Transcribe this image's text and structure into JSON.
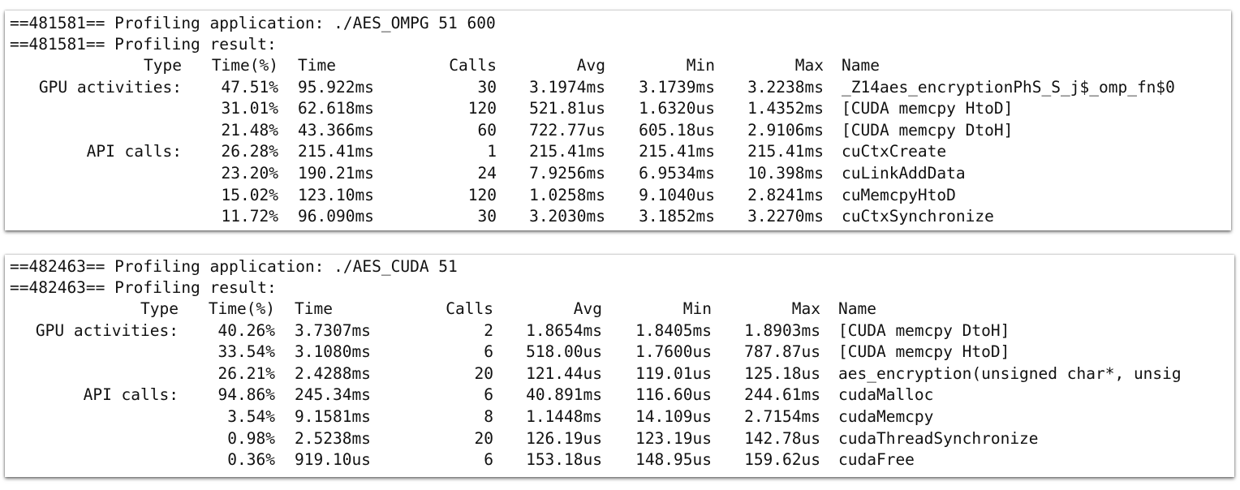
{
  "sessions": [
    {
      "header_lines": [
        "==481581== Profiling application: ./AES_OMPG 51 600",
        "==481581== Profiling result:"
      ],
      "columns": {
        "type": "Type",
        "time_pct": "Time(%)",
        "time": "Time",
        "calls": "Calls",
        "avg": "Avg",
        "min": "Min",
        "max": "Max",
        "name": "Name"
      },
      "rows": [
        {
          "type": "GPU activities:",
          "time_pct": "47.51%",
          "time": "95.922ms",
          "calls": "30",
          "avg": "3.1974ms",
          "min": "3.1739ms",
          "max": "3.2238ms",
          "name": "_Z14aes_encryptionPhS_S_j$_omp_fn$0"
        },
        {
          "type": "",
          "time_pct": "31.01%",
          "time": "62.618ms",
          "calls": "120",
          "avg": "521.81us",
          "min": "1.6320us",
          "max": "1.4352ms",
          "name": "[CUDA memcpy HtoD]"
        },
        {
          "type": "",
          "time_pct": "21.48%",
          "time": "43.366ms",
          "calls": "60",
          "avg": "722.77us",
          "min": "605.18us",
          "max": "2.9106ms",
          "name": "[CUDA memcpy DtoH]"
        },
        {
          "type": "API calls:",
          "time_pct": "26.28%",
          "time": "215.41ms",
          "calls": "1",
          "avg": "215.41ms",
          "min": "215.41ms",
          "max": "215.41ms",
          "name": "cuCtxCreate"
        },
        {
          "type": "",
          "time_pct": "23.20%",
          "time": "190.21ms",
          "calls": "24",
          "avg": "7.9256ms",
          "min": "6.9534ms",
          "max": "10.398ms",
          "name": "cuLinkAddData"
        },
        {
          "type": "",
          "time_pct": "15.02%",
          "time": "123.10ms",
          "calls": "120",
          "avg": "1.0258ms",
          "min": "9.1040us",
          "max": "2.8241ms",
          "name": "cuMemcpyHtoD"
        },
        {
          "type": "",
          "time_pct": "11.72%",
          "time": "96.090ms",
          "calls": "30",
          "avg": "3.2030ms",
          "min": "3.1852ms",
          "max": "3.2270ms",
          "name": "cuCtxSynchronize"
        }
      ]
    },
    {
      "header_lines": [
        "==482463== Profiling application: ./AES_CUDA 51",
        "==482463== Profiling result:"
      ],
      "columns": {
        "type": "Type",
        "time_pct": "Time(%)",
        "time": "Time",
        "calls": "Calls",
        "avg": "Avg",
        "min": "Min",
        "max": "Max",
        "name": "Name"
      },
      "rows": [
        {
          "type": "GPU activities:",
          "time_pct": "40.26%",
          "time": "3.7307ms",
          "calls": "2",
          "avg": "1.8654ms",
          "min": "1.8405ms",
          "max": "1.8903ms",
          "name": "[CUDA memcpy DtoH]"
        },
        {
          "type": "",
          "time_pct": "33.54%",
          "time": "3.1080ms",
          "calls": "6",
          "avg": "518.00us",
          "min": "1.7600us",
          "max": "787.87us",
          "name": "[CUDA memcpy HtoD]"
        },
        {
          "type": "",
          "time_pct": "26.21%",
          "time": "2.4288ms",
          "calls": "20",
          "avg": "121.44us",
          "min": "119.01us",
          "max": "125.18us",
          "name": "aes_encryption(unsigned char*, unsig"
        },
        {
          "type": "API calls:",
          "time_pct": "94.86%",
          "time": "245.34ms",
          "calls": "6",
          "avg": "40.891ms",
          "min": "116.60us",
          "max": "244.61ms",
          "name": "cudaMalloc"
        },
        {
          "type": "",
          "time_pct": "3.54%",
          "time": "9.1581ms",
          "calls": "8",
          "avg": "1.1448ms",
          "min": "14.109us",
          "max": "2.7154ms",
          "name": "cudaMemcpy"
        },
        {
          "type": "",
          "time_pct": "0.98%",
          "time": "2.5238ms",
          "calls": "20",
          "avg": "126.19us",
          "min": "123.19us",
          "max": "142.78us",
          "name": "cudaThreadSynchronize"
        },
        {
          "type": "",
          "time_pct": "0.36%",
          "time": "919.10us",
          "calls": "6",
          "avg": "153.18us",
          "min": "148.95us",
          "max": "159.62us",
          "name": "cudaFree"
        }
      ]
    }
  ]
}
